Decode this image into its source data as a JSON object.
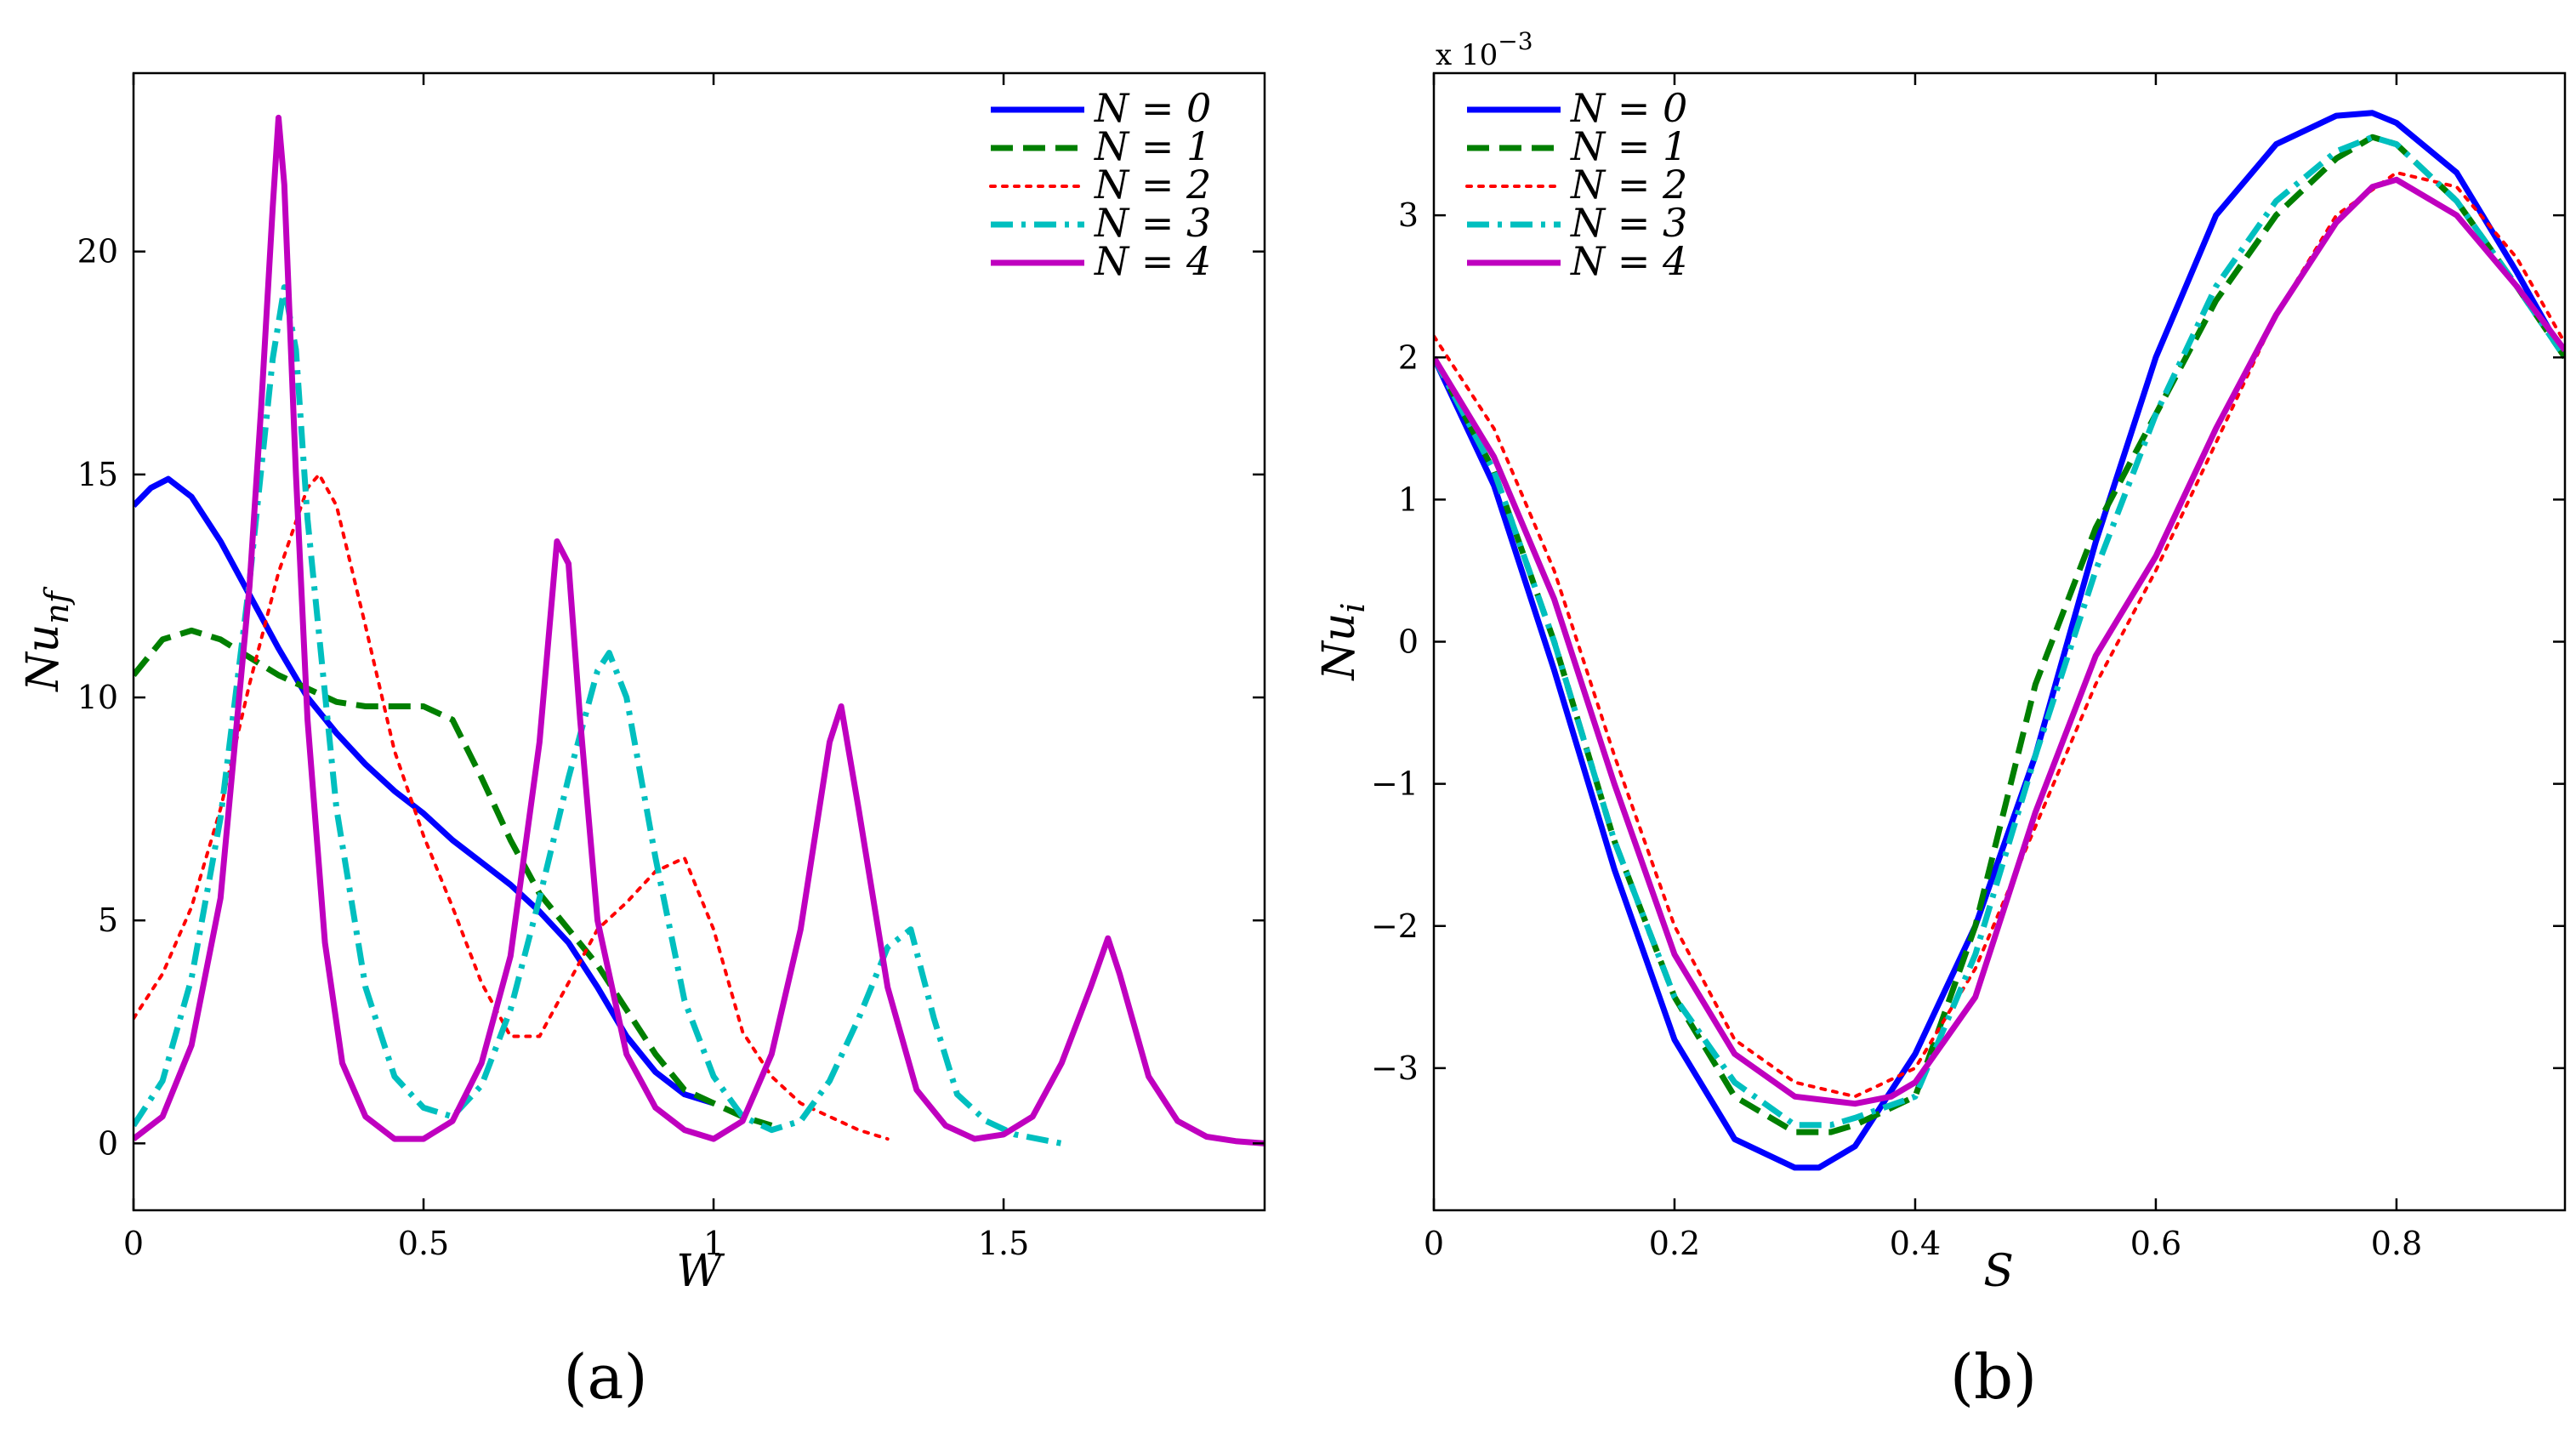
{
  "figure": {
    "colors": {
      "N0": "#0000ff",
      "N1": "#007f00",
      "N2": "#ff0000",
      "N3": "#00bfbf",
      "N4": "#bf00bf"
    }
  },
  "chart_data": [
    {
      "type": "line",
      "panel_label": "(a)",
      "xlabel": "W",
      "ylabel": "Nu",
      "ylabel_sub": "nf",
      "xlim": [
        0,
        1.95
      ],
      "ylim": [
        -1.5,
        24
      ],
      "xticks": [
        0,
        0.5,
        1,
        1.5
      ],
      "xtick_labels": [
        "0",
        "0.5",
        "1",
        "1.5"
      ],
      "yticks": [
        0,
        5,
        10,
        15,
        20
      ],
      "ytick_labels": [
        "0",
        "5",
        "10",
        "15",
        "20"
      ],
      "legend_position": "top-right",
      "series": [
        {
          "name": "N = 0",
          "legend": "N = 0",
          "color": "#0000ff",
          "style": "solid",
          "x": [
            0,
            0.03,
            0.06,
            0.1,
            0.15,
            0.2,
            0.25,
            0.3,
            0.35,
            0.4,
            0.45,
            0.5,
            0.55,
            0.6,
            0.65,
            0.7,
            0.75,
            0.8,
            0.85,
            0.9,
            0.95,
            1.0
          ],
          "y": [
            14.3,
            14.7,
            14.9,
            14.5,
            13.5,
            12.3,
            11.1,
            10.0,
            9.2,
            8.5,
            7.9,
            7.4,
            6.8,
            6.3,
            5.8,
            5.2,
            4.5,
            3.5,
            2.4,
            1.6,
            1.1,
            0.9
          ]
        },
        {
          "name": "N = 1",
          "legend": "N = 1",
          "color": "#007f00",
          "style": "dashed",
          "x": [
            0,
            0.05,
            0.1,
            0.15,
            0.2,
            0.25,
            0.3,
            0.35,
            0.4,
            0.45,
            0.5,
            0.55,
            0.6,
            0.65,
            0.7,
            0.75,
            0.8,
            0.85,
            0.9,
            0.95,
            1.0,
            1.05,
            1.1
          ],
          "y": [
            10.5,
            11.3,
            11.5,
            11.3,
            10.9,
            10.5,
            10.2,
            9.9,
            9.8,
            9.8,
            9.8,
            9.5,
            8.2,
            6.8,
            5.6,
            4.8,
            4.0,
            3.0,
            2.0,
            1.2,
            0.9,
            0.6,
            0.4
          ]
        },
        {
          "name": "N = 2",
          "legend": "N = 2",
          "color": "#ff0000",
          "style": "dotted",
          "x": [
            0,
            0.05,
            0.1,
            0.15,
            0.2,
            0.25,
            0.3,
            0.32,
            0.35,
            0.4,
            0.45,
            0.5,
            0.55,
            0.6,
            0.65,
            0.7,
            0.75,
            0.8,
            0.85,
            0.9,
            0.95,
            1.0,
            1.05,
            1.1,
            1.15,
            1.2,
            1.25,
            1.3
          ],
          "y": [
            2.8,
            3.8,
            5.3,
            7.5,
            10.3,
            12.8,
            14.7,
            15.0,
            14.3,
            11.6,
            8.8,
            6.9,
            5.3,
            3.6,
            2.4,
            2.4,
            3.6,
            4.8,
            5.4,
            6.1,
            6.4,
            4.8,
            2.5,
            1.5,
            0.9,
            0.6,
            0.3,
            0.1
          ]
        },
        {
          "name": "N = 3",
          "legend": "N = 3",
          "color": "#00bfbf",
          "style": "dashdot",
          "x": [
            0,
            0.05,
            0.1,
            0.15,
            0.2,
            0.24,
            0.26,
            0.28,
            0.3,
            0.35,
            0.4,
            0.45,
            0.5,
            0.55,
            0.6,
            0.65,
            0.7,
            0.75,
            0.8,
            0.82,
            0.85,
            0.9,
            0.95,
            1.0,
            1.05,
            1.1,
            1.15,
            1.2,
            1.25,
            1.3,
            1.34,
            1.38,
            1.42,
            1.47,
            1.52,
            1.6
          ],
          "y": [
            0.4,
            1.4,
            3.7,
            7.3,
            12.6,
            17.6,
            19.2,
            17.8,
            14.0,
            7.5,
            3.5,
            1.5,
            0.8,
            0.6,
            1.3,
            3.0,
            5.5,
            8.2,
            10.6,
            11.0,
            10.0,
            6.4,
            3.2,
            1.5,
            0.6,
            0.3,
            0.5,
            1.4,
            2.8,
            4.4,
            4.8,
            2.8,
            1.1,
            0.5,
            0.2,
            0.0
          ]
        },
        {
          "name": "N = 4",
          "legend": "N = 4",
          "color": "#bf00bf",
          "style": "solid",
          "x": [
            0,
            0.05,
            0.1,
            0.15,
            0.2,
            0.22,
            0.24,
            0.25,
            0.26,
            0.28,
            0.3,
            0.33,
            0.36,
            0.4,
            0.45,
            0.5,
            0.55,
            0.6,
            0.65,
            0.7,
            0.73,
            0.75,
            0.77,
            0.8,
            0.85,
            0.9,
            0.95,
            1.0,
            1.05,
            1.1,
            1.15,
            1.2,
            1.22,
            1.25,
            1.3,
            1.35,
            1.4,
            1.45,
            1.5,
            1.55,
            1.6,
            1.65,
            1.68,
            1.7,
            1.75,
            1.8,
            1.85,
            1.9,
            1.95
          ],
          "y": [
            0.1,
            0.6,
            2.2,
            5.5,
            12.5,
            16.5,
            21.0,
            23.0,
            21.5,
            15.0,
            9.5,
            4.5,
            1.8,
            0.6,
            0.1,
            0.1,
            0.5,
            1.8,
            4.2,
            9.0,
            13.5,
            13.0,
            9.5,
            5.0,
            2.0,
            0.8,
            0.3,
            0.1,
            0.5,
            2.0,
            4.8,
            9.0,
            9.8,
            7.5,
            3.5,
            1.2,
            0.4,
            0.1,
            0.2,
            0.6,
            1.8,
            3.5,
            4.6,
            3.8,
            1.5,
            0.5,
            0.15,
            0.05,
            0.0
          ]
        }
      ]
    },
    {
      "type": "line",
      "panel_label": "(b)",
      "xlabel": "S",
      "ylabel": "Nu",
      "ylabel_sub": "i",
      "multiplier_label": "x 10",
      "multiplier_exp": "−3",
      "xlim": [
        0,
        0.94
      ],
      "ylim": [
        -4,
        4
      ],
      "xticks": [
        0,
        0.2,
        0.4,
        0.6,
        0.8
      ],
      "xtick_labels": [
        "0",
        "0.2",
        "0.4",
        "0.6",
        "0.8"
      ],
      "yticks": [
        -3,
        -2,
        -1,
        0,
        1,
        2,
        3
      ],
      "ytick_labels": [
        "−3",
        "−2",
        "−1",
        "0",
        "1",
        "2",
        "3"
      ],
      "legend_position": "top-left",
      "series": [
        {
          "name": "N = 0",
          "legend": "N = 0",
          "color": "#0000ff",
          "style": "solid",
          "x": [
            0,
            0.05,
            0.1,
            0.15,
            0.2,
            0.25,
            0.3,
            0.32,
            0.35,
            0.4,
            0.45,
            0.5,
            0.55,
            0.6,
            0.65,
            0.7,
            0.75,
            0.78,
            0.8,
            0.85,
            0.9,
            0.94
          ],
          "y": [
            2.0,
            1.1,
            -0.2,
            -1.6,
            -2.8,
            -3.5,
            -3.7,
            -3.7,
            -3.55,
            -2.9,
            -2.0,
            -0.8,
            0.7,
            2.0,
            3.0,
            3.5,
            3.7,
            3.72,
            3.65,
            3.3,
            2.6,
            2.0
          ]
        },
        {
          "name": "N = 1",
          "legend": "N = 1",
          "color": "#007f00",
          "style": "dashed",
          "x": [
            0,
            0.05,
            0.1,
            0.15,
            0.2,
            0.25,
            0.3,
            0.33,
            0.35,
            0.4,
            0.45,
            0.5,
            0.55,
            0.6,
            0.65,
            0.7,
            0.75,
            0.78,
            0.8,
            0.85,
            0.9,
            0.94
          ],
          "y": [
            2.0,
            1.2,
            0.0,
            -1.4,
            -2.5,
            -3.2,
            -3.45,
            -3.45,
            -3.4,
            -3.2,
            -2.0,
            -0.3,
            0.8,
            1.6,
            2.4,
            3.0,
            3.4,
            3.55,
            3.5,
            3.1,
            2.5,
            2.0
          ]
        },
        {
          "name": "N = 2",
          "legend": "N = 2",
          "color": "#ff0000",
          "style": "dotted",
          "x": [
            0,
            0.05,
            0.1,
            0.15,
            0.2,
            0.25,
            0.3,
            0.35,
            0.4,
            0.45,
            0.5,
            0.55,
            0.6,
            0.65,
            0.7,
            0.75,
            0.8,
            0.85,
            0.9,
            0.94
          ],
          "y": [
            2.15,
            1.5,
            0.5,
            -0.8,
            -2.0,
            -2.8,
            -3.1,
            -3.2,
            -3.0,
            -2.3,
            -1.3,
            -0.3,
            0.5,
            1.4,
            2.3,
            3.0,
            3.3,
            3.2,
            2.7,
            2.1
          ]
        },
        {
          "name": "N = 3",
          "legend": "N = 3",
          "color": "#00bfbf",
          "style": "dashdot",
          "x": [
            0,
            0.05,
            0.1,
            0.15,
            0.2,
            0.25,
            0.3,
            0.33,
            0.35,
            0.4,
            0.45,
            0.5,
            0.55,
            0.6,
            0.65,
            0.7,
            0.75,
            0.78,
            0.8,
            0.85,
            0.9,
            0.94
          ],
          "y": [
            2.0,
            1.2,
            0.0,
            -1.4,
            -2.5,
            -3.1,
            -3.4,
            -3.4,
            -3.35,
            -3.2,
            -2.2,
            -0.8,
            0.5,
            1.6,
            2.5,
            3.1,
            3.45,
            3.55,
            3.5,
            3.1,
            2.5,
            2.0
          ]
        },
        {
          "name": "N = 4",
          "legend": "N = 4",
          "color": "#bf00bf",
          "style": "solid",
          "x": [
            0,
            0.05,
            0.1,
            0.15,
            0.2,
            0.25,
            0.3,
            0.35,
            0.38,
            0.4,
            0.45,
            0.5,
            0.55,
            0.6,
            0.65,
            0.7,
            0.75,
            0.78,
            0.8,
            0.85,
            0.9,
            0.94
          ],
          "y": [
            2.0,
            1.3,
            0.3,
            -1.0,
            -2.2,
            -2.9,
            -3.2,
            -3.25,
            -3.2,
            -3.1,
            -2.5,
            -1.2,
            -0.1,
            0.6,
            1.5,
            2.3,
            2.95,
            3.2,
            3.25,
            3.0,
            2.5,
            2.05
          ]
        }
      ]
    }
  ]
}
